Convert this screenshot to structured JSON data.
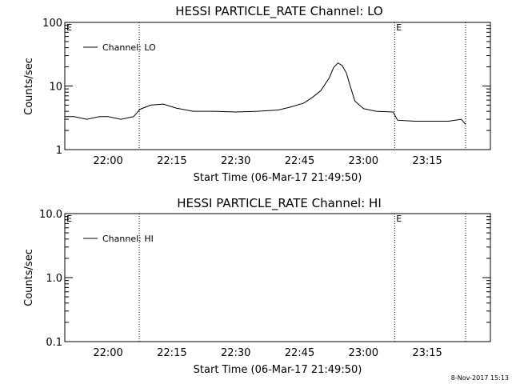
{
  "chart_data": [
    {
      "type": "line",
      "title": "HESSI PARTICLE_RATE Channel: LO",
      "xlabel": "Start Time (06-Mar-17 21:49:50)",
      "ylabel": "Counts/sec",
      "y_scale": "log",
      "ylim": [
        1,
        100
      ],
      "xlim": [
        "21:49:50",
        "23:29:50"
      ],
      "x_ticks": [
        "22:00",
        "22:15",
        "22:30",
        "22:45",
        "23:00",
        "23:15"
      ],
      "y_ticks": [
        "1",
        "10",
        "100"
      ],
      "legend": {
        "placement": "top-left",
        "entries": [
          "Channel: LO"
        ]
      },
      "markers": [
        {
          "label": "E",
          "time": "21:49:50"
        },
        {
          "label": "",
          "time": "22:07:20"
        },
        {
          "label": "E",
          "time": "23:07:20"
        },
        {
          "label": "",
          "time": "23:24:00"
        }
      ],
      "series": [
        {
          "name": "Channel: LO",
          "x": [
            "21:49:50",
            "21:52:00",
            "21:55:00",
            "21:58:00",
            "22:00:00",
            "22:03:00",
            "22:06:00",
            "22:07:30",
            "22:10:00",
            "22:13:00",
            "22:16:00",
            "22:20:00",
            "22:25:00",
            "22:30:00",
            "22:35:00",
            "22:40:00",
            "22:43:00",
            "22:46:00",
            "22:48:00",
            "22:50:00",
            "22:52:00",
            "22:53:00",
            "22:54:00",
            "22:55:00",
            "22:56:00",
            "22:57:00",
            "22:58:00",
            "23:00:00",
            "23:03:00",
            "23:07:00",
            "23:08:00",
            "23:12:00",
            "23:16:00",
            "23:20:00",
            "23:23:00",
            "23:24:00"
          ],
          "values": [
            3.3,
            3.3,
            3.0,
            3.3,
            3.3,
            3.0,
            3.3,
            4.3,
            5.0,
            5.2,
            4.5,
            4.0,
            4.0,
            3.9,
            4.0,
            4.2,
            4.7,
            5.4,
            6.6,
            8.5,
            13.5,
            19.5,
            23.0,
            21.0,
            16.0,
            9.5,
            5.8,
            4.4,
            4.0,
            3.9,
            2.9,
            2.8,
            2.8,
            2.8,
            3.0,
            2.5
          ]
        }
      ]
    },
    {
      "type": "line",
      "title": "HESSI PARTICLE_RATE Channel: HI",
      "xlabel": "Start Time (06-Mar-17 21:49:50)",
      "ylabel": "Counts/sec",
      "y_scale": "log",
      "ylim": [
        0.1,
        10.0
      ],
      "xlim": [
        "21:49:50",
        "23:29:50"
      ],
      "x_ticks": [
        "22:00",
        "22:15",
        "22:30",
        "22:45",
        "23:00",
        "23:15"
      ],
      "y_ticks": [
        "0.1",
        "1.0",
        "10.0"
      ],
      "legend": {
        "placement": "top-left",
        "entries": [
          "Channel: HI"
        ]
      },
      "markers": [
        {
          "label": "E",
          "time": "21:49:50"
        },
        {
          "label": "",
          "time": "22:07:20"
        },
        {
          "label": "E",
          "time": "23:07:20"
        },
        {
          "label": "",
          "time": "23:24:00"
        }
      ],
      "series": [
        {
          "name": "Channel: HI",
          "x": [],
          "values": []
        }
      ]
    }
  ],
  "footer": {
    "timestamp": "8-Nov-2017 15:13"
  },
  "colors": {
    "background": "#ffffff",
    "foreground": "#000000"
  }
}
